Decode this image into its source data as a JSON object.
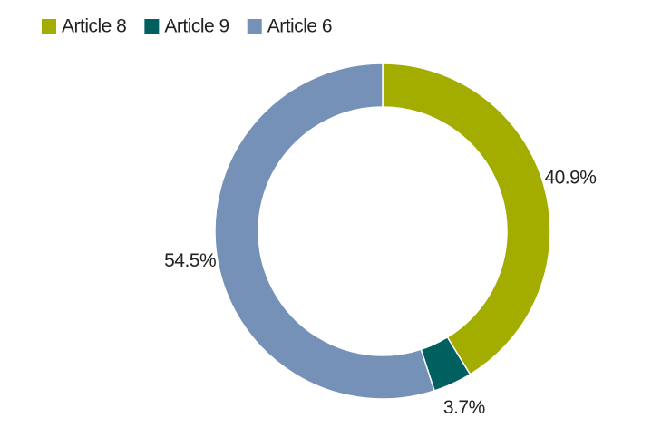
{
  "chart_data": {
    "type": "donut",
    "categories": [
      "Article 8",
      "Article 9",
      "Article 6"
    ],
    "values": [
      40.9,
      3.7,
      54.5
    ],
    "value_labels": [
      "40.9%",
      "3.7%",
      "54.5%"
    ],
    "colors": [
      "#a2ad00",
      "#005f5f",
      "#7591b7"
    ],
    "legend": "top-left"
  }
}
